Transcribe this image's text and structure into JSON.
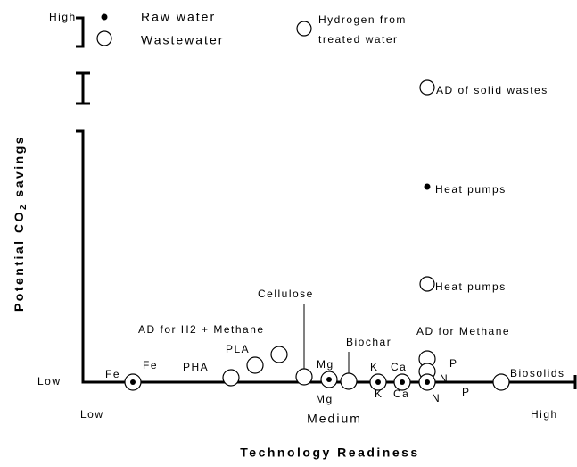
{
  "y_axis": {
    "title": "Potential CO",
    "title_sub": "2",
    "title_end": " savings",
    "high": "High",
    "low": "Low"
  },
  "x_axis": {
    "title": "Technology Readiness",
    "low": "Low",
    "medium": "Medium",
    "high": "High"
  },
  "legend": {
    "raw": "Raw water",
    "waste": "Wastewater",
    "hydrogen_1": "Hydrogen from",
    "hydrogen_2": "treated water"
  },
  "points": {
    "fe_a": "Fe",
    "fe_b": "Fe",
    "pha": "PHA",
    "pla": "PLA",
    "ad_h2": "AD for H2 + Methane",
    "cellulose": "Cellulose",
    "mg_a": "Mg",
    "mg_b": "Mg",
    "biochar": "Biochar",
    "k_a": "K",
    "k_b": "K",
    "ca_a": "Ca",
    "ca_b": "Ca",
    "ad_methane": "AD for Methane",
    "p_a": "P",
    "n_a": "N",
    "n_b": "N",
    "p_b": "P",
    "biosolids": "Biosolids",
    "heat_open": "Heat pumps",
    "heat_dot": "Heat pumps",
    "ad_solid": "AD of solid wastes"
  }
}
